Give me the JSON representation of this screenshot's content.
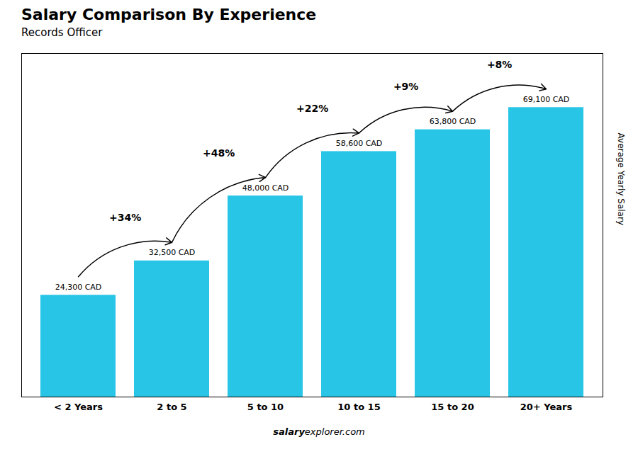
{
  "chart_data": {
    "type": "bar",
    "title": "Salary Comparison By Experience",
    "subtitle": "Records Officer",
    "categories": [
      "< 2 Years",
      "2 to 5",
      "5 to 10",
      "10 to 15",
      "15 to 20",
      "20+ Years"
    ],
    "values": [
      24300,
      32500,
      48000,
      58600,
      63800,
      69100
    ],
    "value_labels": [
      "24,300 CAD",
      "32,500 CAD",
      "48,000 CAD",
      "58,600 CAD",
      "63,800 CAD",
      "69,100 CAD"
    ],
    "data_labels": true,
    "annotations": [
      "+34%",
      "+48%",
      "+22%",
      "+9%",
      "+8%"
    ],
    "ylabel": "Average Yearly Salary",
    "footer": [
      "salary",
      "explorer.com"
    ],
    "color": "#29c5e6",
    "ylim": [
      0,
      82000
    ],
    "tick_labels": "x",
    "grid": false
  }
}
